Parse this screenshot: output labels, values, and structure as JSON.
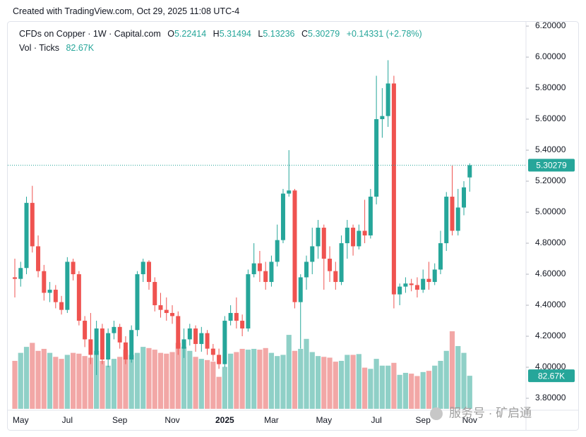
{
  "credit": "Created with TradingView.com, Oct 29, 2025 11:08 UTC-4",
  "watermark": "服务号 · 矿启通",
  "chart_data": {
    "type": "candlestick",
    "title": "CFDs on Copper · 1W · Capital.com",
    "ohlc_labels": [
      "O",
      "H",
      "L",
      "C"
    ],
    "change": "+0.14331 (+2.78%)",
    "categories": [
      null,
      "May",
      null,
      null,
      null,
      null,
      null,
      null,
      null,
      "Jul",
      null,
      null,
      null,
      null,
      null,
      null,
      null,
      null,
      "Sep",
      null,
      null,
      null,
      null,
      null,
      null,
      null,
      null,
      "Nov",
      null,
      null,
      null,
      null,
      null,
      null,
      null,
      null,
      "2025",
      null,
      null,
      null,
      null,
      null,
      null,
      null,
      "Mar",
      null,
      null,
      null,
      null,
      null,
      null,
      null,
      null,
      "May",
      null,
      null,
      null,
      null,
      null,
      null,
      null,
      null,
      "Jul",
      null,
      null,
      null,
      null,
      null,
      null,
      null,
      "Sep",
      null,
      null,
      null,
      null,
      null,
      null,
      null,
      "Nov"
    ],
    "open": [
      4.58,
      4.57,
      4.64,
      5.06,
      4.78,
      4.62,
      4.48,
      4.5,
      4.42,
      4.37,
      4.68,
      4.6,
      4.3,
      4.18,
      4.08,
      4.25,
      4.05,
      4.22,
      4.26,
      4.16,
      4.05,
      4.24,
      4.6,
      4.68,
      4.55,
      4.4,
      4.37,
      4.35,
      4.33,
      4.12,
      4.18,
      4.25,
      4.15,
      4.22,
      4.12,
      4.08,
      4.02,
      4.3,
      4.35,
      4.3,
      4.25,
      4.6,
      4.67,
      4.62,
      4.55,
      4.68,
      4.82,
      5.12,
      5.14,
      4.42,
      4.58,
      4.68,
      4.78,
      4.9,
      4.7,
      4.62,
      4.55,
      4.8,
      4.9,
      4.78,
      4.88,
      4.85,
      5.1,
      5.6,
      5.62,
      5.83,
      4.47,
      4.52,
      4.54,
      4.53,
      4.5,
      4.57,
      4.55,
      4.63,
      4.8,
      5.1,
      4.88,
      5.03,
      5.22414
    ],
    "high": [
      4.7,
      4.68,
      5.1,
      5.17,
      4.85,
      4.66,
      4.55,
      4.53,
      4.46,
      4.71,
      4.7,
      4.62,
      4.33,
      4.35,
      4.3,
      4.28,
      4.25,
      4.3,
      4.28,
      4.2,
      4.27,
      4.62,
      4.7,
      4.69,
      4.58,
      4.48,
      4.45,
      4.4,
      4.36,
      4.25,
      4.28,
      4.27,
      4.26,
      4.24,
      4.15,
      4.12,
      4.33,
      4.4,
      4.45,
      4.34,
      4.63,
      4.8,
      4.75,
      4.68,
      4.72,
      4.92,
      5.15,
      5.4,
      5.15,
      4.6,
      4.72,
      4.9,
      4.95,
      4.92,
      4.78,
      4.68,
      4.85,
      4.95,
      4.92,
      4.92,
      5.08,
      5.15,
      5.88,
      5.8,
      5.98,
      5.88,
      4.54,
      4.58,
      4.57,
      4.58,
      4.63,
      4.68,
      4.67,
      4.88,
      5.13,
      5.3,
      5.15,
      5.2,
      5.31494
    ],
    "low": [
      4.45,
      4.52,
      4.6,
      4.74,
      4.58,
      4.43,
      4.42,
      4.38,
      4.34,
      4.35,
      4.56,
      4.27,
      4.13,
      4.02,
      3.95,
      4.02,
      4.0,
      4.18,
      4.12,
      4.02,
      4.03,
      4.2,
      4.55,
      4.5,
      4.36,
      4.32,
      4.3,
      4.28,
      4.08,
      4.06,
      4.14,
      4.1,
      4.1,
      4.08,
      4.04,
      3.99,
      4.0,
      4.27,
      4.25,
      4.2,
      4.23,
      4.58,
      4.55,
      4.5,
      4.52,
      4.65,
      4.8,
      5.1,
      4.38,
      4.12,
      4.5,
      4.6,
      4.7,
      4.5,
      4.55,
      4.5,
      4.53,
      4.7,
      4.72,
      4.76,
      4.8,
      4.83,
      5.05,
      5.48,
      5.55,
      4.38,
      4.4,
      4.48,
      4.49,
      4.45,
      4.48,
      4.5,
      4.53,
      4.6,
      4.75,
      4.85,
      4.85,
      4.98,
      5.13236
    ],
    "close": [
      4.57,
      4.64,
      5.06,
      4.78,
      4.62,
      4.48,
      4.5,
      4.42,
      4.37,
      4.68,
      4.6,
      4.3,
      4.18,
      4.08,
      4.25,
      4.05,
      4.22,
      4.26,
      4.16,
      4.05,
      4.24,
      4.6,
      4.68,
      4.55,
      4.4,
      4.37,
      4.35,
      4.33,
      4.12,
      4.18,
      4.25,
      4.15,
      4.22,
      4.12,
      4.08,
      4.02,
      4.3,
      4.35,
      4.3,
      4.25,
      4.6,
      4.67,
      4.62,
      4.55,
      4.68,
      4.82,
      5.12,
      5.14,
      4.42,
      4.58,
      4.68,
      4.78,
      4.9,
      4.7,
      4.62,
      4.55,
      4.8,
      4.9,
      4.78,
      4.88,
      4.85,
      5.1,
      5.6,
      5.62,
      5.83,
      4.47,
      4.52,
      4.54,
      4.53,
      4.5,
      4.57,
      4.55,
      4.63,
      4.8,
      5.1,
      4.88,
      5.03,
      5.16,
      5.30279
    ],
    "colors": {
      "up": "#26a69a",
      "down": "#ef5350",
      "up_volume": "#8fd0c7",
      "down_volume": "#f2a7a6"
    },
    "volume": {
      "name": "Vol · Ticks",
      "values": [
        120,
        140,
        155,
        165,
        145,
        150,
        140,
        130,
        125,
        135,
        140,
        138,
        132,
        128,
        145,
        120,
        108,
        125,
        130,
        148,
        135,
        140,
        155,
        152,
        148,
        140,
        138,
        142,
        165,
        155,
        145,
        130,
        125,
        122,
        118,
        80,
        105,
        138,
        142,
        150,
        148,
        150,
        148,
        152,
        140,
        132,
        135,
        185,
        145,
        150,
        175,
        142,
        132,
        130,
        128,
        118,
        120,
        135,
        135,
        137,
        103,
        100,
        125,
        108,
        108,
        115,
        85,
        90,
        88,
        82,
        92,
        95,
        108,
        120,
        145,
        194,
        157,
        140,
        82.67
      ],
      "value_labels": [
        null,
        null,
        null,
        null,
        null,
        null,
        null,
        null,
        null,
        null,
        null,
        null,
        null,
        null,
        null,
        null,
        null,
        null,
        null,
        null,
        null,
        null,
        null,
        null,
        null,
        null,
        null,
        null,
        null,
        null,
        null,
        null,
        null,
        null,
        null,
        null,
        null,
        null,
        null,
        null,
        null,
        null,
        null,
        null,
        null,
        null,
        null,
        null,
        null,
        null,
        null,
        null,
        null,
        null,
        null,
        null,
        null,
        null,
        null,
        null,
        null,
        null,
        null,
        null,
        null,
        null,
        null,
        null,
        null,
        null,
        null,
        null,
        null,
        null,
        null,
        null,
        null,
        null,
        "82.67K"
      ]
    },
    "ylim": [
      3.732,
      6.232
    ],
    "yticks": [
      {
        "value": 3.8,
        "label": "3.80000"
      },
      {
        "value": 4.0,
        "label": "4.00000"
      },
      {
        "value": 4.2,
        "label": "4.20000"
      },
      {
        "value": 4.4,
        "label": "4.40000"
      },
      {
        "value": 4.6,
        "label": "4.60000"
      },
      {
        "value": 4.8,
        "label": "4.80000"
      },
      {
        "value": 5.0,
        "label": "5.00000"
      },
      {
        "value": 5.2,
        "label": "5.20000"
      },
      {
        "value": 5.4,
        "label": "5.40000"
      },
      {
        "value": 5.6,
        "label": "5.60000"
      },
      {
        "value": 5.8,
        "label": "5.80000"
      },
      {
        "value": 6.0,
        "label": "6.00000"
      },
      {
        "value": 6.2,
        "label": "6.20000"
      }
    ],
    "grid": false
  }
}
